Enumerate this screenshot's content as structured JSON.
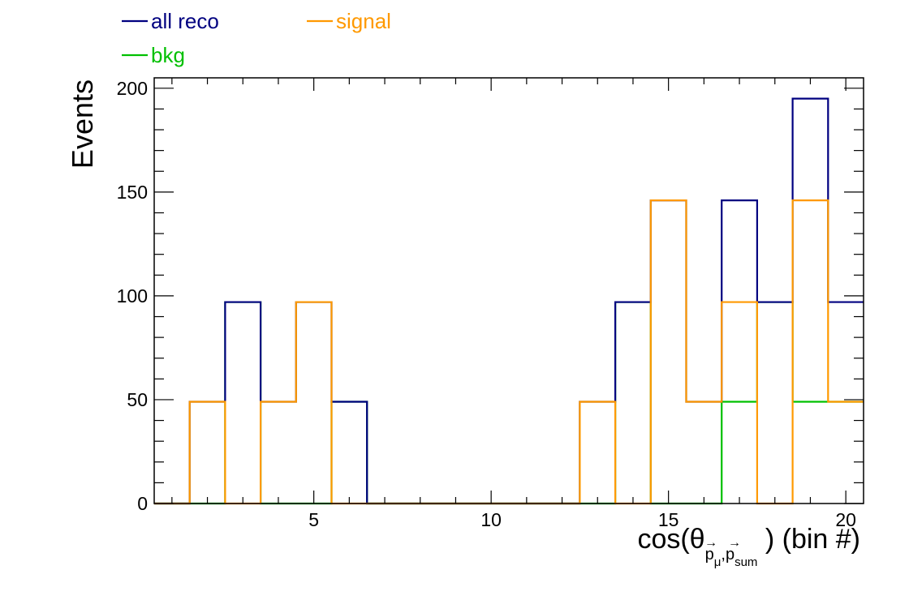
{
  "chart_data": {
    "type": "step-histogram",
    "x_label_parts": [
      "cos(θ",
      "p",
      "μ",
      "p",
      "sum",
      ") (bin #)"
    ],
    "x_label_arrow": "→",
    "x_label_comma": ",",
    "ylabel": "Events",
    "xlim": [
      0.5,
      20.5
    ],
    "ylim": [
      0,
      205
    ],
    "x_ticks": [
      5,
      10,
      15,
      20
    ],
    "y_ticks": [
      0,
      50,
      100,
      150,
      200
    ],
    "bins": [
      1,
      2,
      3,
      4,
      5,
      6,
      7,
      8,
      9,
      10,
      11,
      12,
      13,
      14,
      15,
      16,
      17,
      18,
      19,
      20
    ],
    "series": [
      {
        "name": "all reco",
        "color": "#000080",
        "values": [
          0,
          49,
          97,
          49,
          97,
          49,
          0,
          0,
          0,
          0,
          0,
          0,
          49,
          97,
          146,
          49,
          146,
          97,
          195,
          97
        ]
      },
      {
        "name": "signal",
        "color": "#ff9900",
        "values": [
          0,
          49,
          0,
          49,
          97,
          0,
          0,
          0,
          0,
          0,
          0,
          0,
          49,
          0,
          146,
          49,
          97,
          0,
          146,
          49
        ]
      },
      {
        "name": "bkg",
        "color": "#00c000",
        "values": [
          0,
          0,
          97,
          0,
          0,
          49,
          0,
          0,
          0,
          0,
          0,
          0,
          0,
          97,
          0,
          0,
          49,
          97,
          49,
          49
        ]
      }
    ],
    "legend_position": "top-left"
  }
}
